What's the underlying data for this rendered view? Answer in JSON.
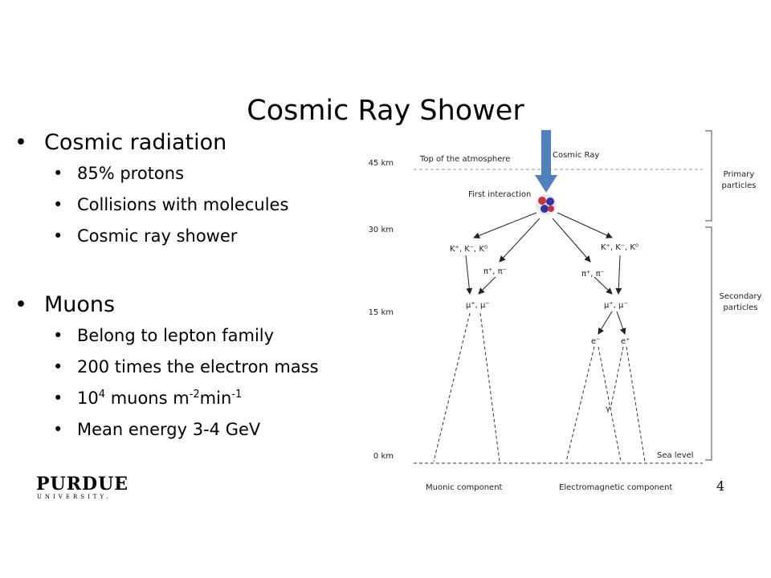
{
  "title": "Cosmic Ray Shower",
  "bullets": [
    {
      "text": "Cosmic radiation",
      "sub": [
        "85% protons",
        "Collisions with molecules",
        "Cosmic ray shower"
      ]
    },
    {
      "text": "Muons",
      "sub": [
        "Belong to lepton family",
        "200 times the electron mass"
      ]
    }
  ],
  "flux_bullet": [
    "10",
    "4",
    " muons m",
    "-2",
    "min",
    "-1"
  ],
  "last_bullet": "Mean energy 3-4 GeV",
  "diagram": {
    "altitudes": [
      "45 km",
      "30 km",
      "15 km",
      "0 km"
    ],
    "top_label": "Top of the atmosphere",
    "cosmic_ray": "Cosmic Ray",
    "first_interaction": "First interaction",
    "primary": "Primary particles",
    "secondary": "Secondary particles",
    "kaons": "K⁺, K⁻, K⁰",
    "pions": "π⁺, π⁻",
    "muons": "μ⁺, μ⁻",
    "e_plus": "e⁺",
    "e_minus": "e⁻",
    "gamma": "γ",
    "sea_level": "Sea level",
    "muonic": "Muonic component",
    "electromagnetic": "Electromagnetic component"
  },
  "logo": {
    "name": "PURDUE",
    "sub": "UNIVERSITY."
  },
  "page_number": "4"
}
